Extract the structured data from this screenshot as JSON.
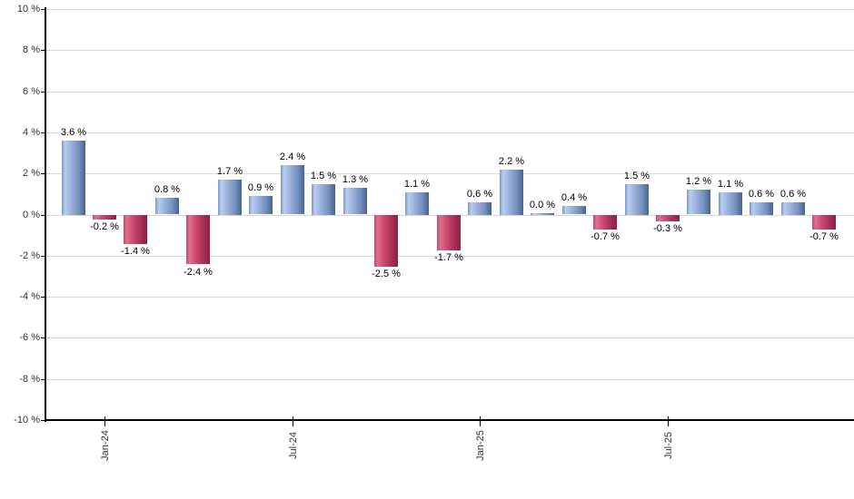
{
  "chart_data": {
    "type": "bar",
    "title": "",
    "xlabel": "",
    "ylabel": "",
    "ylim": [
      -10,
      10
    ],
    "grid": true,
    "legend": false,
    "values": [
      3.6,
      -0.2,
      -1.4,
      0.8,
      -2.4,
      1.7,
      0.9,
      2.4,
      1.5,
      1.3,
      -2.5,
      1.1,
      -1.7,
      0.6,
      2.2,
      0.0,
      0.4,
      -0.7,
      1.5,
      -0.3,
      1.2,
      1.1,
      0.6,
      0.6,
      -0.7
    ],
    "bar_labels": [
      "3.6 %",
      "-0.2 %",
      "-1.4 %",
      "0.8 %",
      "-2.4 %",
      "1.7 %",
      "0.9 %",
      "2.4 %",
      "1.5 %",
      "1.3 %",
      "-2.5 %",
      "1.1 %",
      "-1.7 %",
      "0.6 %",
      "2.2 %",
      "0.0 %",
      "0.4 %",
      "-0.7 %",
      "1.5 %",
      "-0.3 %",
      "1.2 %",
      "1.1 %",
      "0.6 %",
      "0.6 %",
      "-0.7 %"
    ],
    "x_ticks": [
      {
        "index": 1,
        "label": "Jan-24"
      },
      {
        "index": 7,
        "label": "Jul-24"
      },
      {
        "index": 13,
        "label": "Jan-25"
      },
      {
        "index": 19,
        "label": "Jul-25"
      }
    ],
    "y_ticks": [
      {
        "value": 10,
        "label": "10 %"
      },
      {
        "value": 8,
        "label": "8 %"
      },
      {
        "value": 6,
        "label": "6 %"
      },
      {
        "value": 4,
        "label": "4 %"
      },
      {
        "value": 2,
        "label": "2 %"
      },
      {
        "value": 0,
        "label": "0 %"
      },
      {
        "value": -2,
        "label": "-2 %"
      },
      {
        "value": -4,
        "label": "-4 %"
      },
      {
        "value": -6,
        "label": "-6 %"
      },
      {
        "value": -8,
        "label": "-8 %"
      },
      {
        "value": -10,
        "label": "-10 %"
      }
    ],
    "colors": {
      "positive_gradient": [
        "#7b97c4",
        "#b9cdf2",
        "#9ab1da",
        "#7490bf",
        "#46648f"
      ],
      "negative_gradient": [
        "#c4476a",
        "#e0718f",
        "#cc4a6d",
        "#a93154",
        "#8e1f41"
      ],
      "gridline": "#d9d9d9",
      "axis": "#000000",
      "bar_label_text": "#000000",
      "tick_text": "#333333",
      "background": "#ffffff"
    }
  }
}
